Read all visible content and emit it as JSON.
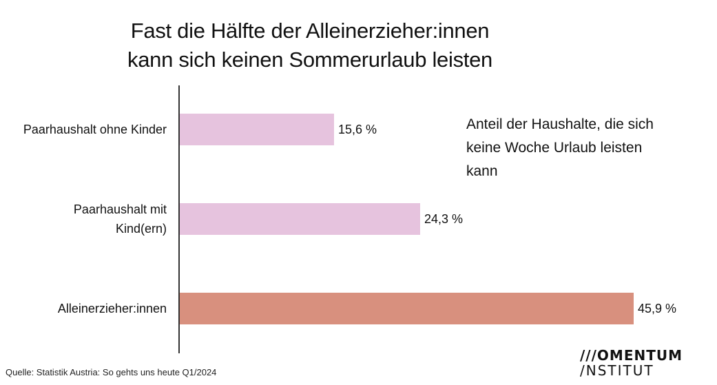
{
  "chart_data": {
    "type": "bar",
    "orientation": "horizontal",
    "title": [
      "Fast die Hälfte der Alleinerzieher:innen",
      "kann sich keinen Sommerurlaub leisten"
    ],
    "subtitle": "Anteil der Haushalte, die sich keine Woche Urlaub leisten kann",
    "categories": [
      "Paarhaushalt ohne Kinder",
      "Paarhaushalt mit Kind(ern)",
      "Alleinerzieher:innen"
    ],
    "values": [
      15.6,
      24.3,
      45.9
    ],
    "value_labels": [
      "15,6 %",
      "24,3 %",
      "45,9 %"
    ],
    "colors": [
      "#e6c3de",
      "#e6c3de",
      "#d8907e"
    ],
    "xlim": [
      0,
      45.9
    ]
  },
  "source": "Quelle: Statistik Austria: So gehts uns heute Q1/2024",
  "logo": {
    "line1": "///OMENTUM",
    "line2": "/NSTITUT"
  }
}
